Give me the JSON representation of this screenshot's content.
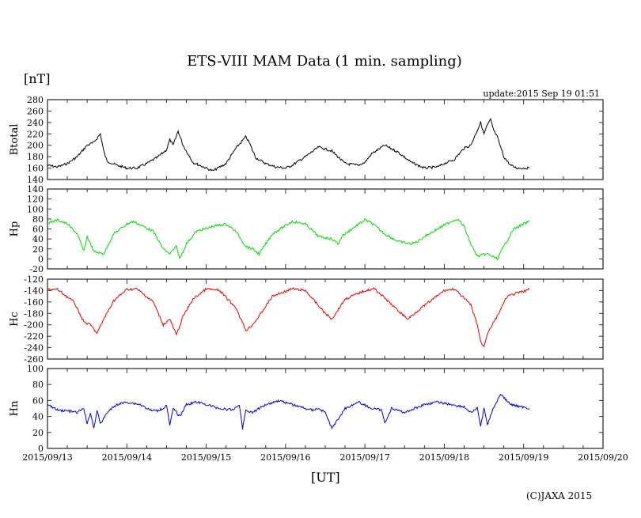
{
  "chart_data": {
    "type": "line",
    "title": "ETS-VIII MAM Data (1 min. sampling)",
    "unit_label": "[nT]",
    "update": "update:2015 Sep 19 01:51",
    "xlabel": "[UT]",
    "copyright": "(C)JAXA 2015",
    "x_ticks": [
      "2015/09/13",
      "2015/09/14",
      "2015/09/15",
      "2015/09/16",
      "2015/09/17",
      "2015/09/18",
      "2015/09/19",
      "2015/09/20"
    ],
    "xlim_hours_from_start": [
      0,
      168
    ],
    "panels": [
      {
        "name": "Btotal",
        "color": "#000000",
        "ylim": [
          140,
          280
        ],
        "yticks": [
          "280",
          "260",
          "240",
          "220",
          "200",
          "180",
          "160",
          "140"
        ],
        "x": [
          0,
          3,
          6,
          9,
          12,
          14,
          16,
          17,
          18,
          21,
          24,
          27,
          30,
          33,
          36,
          37,
          38,
          39.5,
          41,
          44,
          48,
          50,
          54,
          57,
          60,
          61,
          63,
          66,
          69,
          72,
          74,
          78,
          82,
          86,
          90,
          94,
          96,
          98,
          102,
          106,
          110,
          114,
          118,
          120,
          123,
          126,
          128,
          131,
          132,
          133,
          134,
          135,
          136,
          138,
          140,
          142,
          145.7
        ],
        "y": [
          165,
          162,
          168,
          180,
          200,
          205,
          220,
          190,
          172,
          165,
          160,
          160,
          168,
          178,
          192,
          210,
          200,
          225,
          200,
          170,
          160,
          155,
          168,
          195,
          215,
          205,
          178,
          168,
          162,
          160,
          165,
          180,
          197,
          190,
          168,
          165,
          170,
          185,
          200,
          188,
          170,
          160,
          162,
          168,
          175,
          195,
          200,
          240,
          220,
          235,
          245,
          225,
          215,
          180,
          165,
          160,
          160
        ]
      },
      {
        "name": "Hp",
        "color": "#00dd00",
        "ylim": [
          -20,
          140
        ],
        "yticks": [
          "140",
          "120",
          "100",
          "80",
          "60",
          "40",
          "20",
          "0",
          "-20"
        ],
        "x": [
          0,
          3,
          6,
          9,
          11,
          12,
          14,
          17,
          20,
          24,
          26,
          32,
          35,
          37,
          39,
          40,
          42,
          45,
          50,
          54,
          57,
          60,
          62,
          64,
          68,
          74,
          78,
          82,
          86,
          88,
          89,
          92,
          96,
          98,
          102,
          106,
          110,
          112,
          114,
          118,
          122,
          124,
          126,
          128,
          130,
          133,
          136,
          138,
          141,
          145.7
        ],
        "y": [
          72,
          78,
          70,
          50,
          15,
          45,
          15,
          10,
          50,
          70,
          75,
          55,
          20,
          10,
          25,
          0,
          30,
          55,
          65,
          70,
          55,
          25,
          20,
          10,
          50,
          75,
          70,
          45,
          40,
          30,
          45,
          60,
          78,
          72,
          50,
          35,
          30,
          35,
          45,
          60,
          75,
          80,
          65,
          30,
          5,
          10,
          0,
          25,
          60,
          75
        ]
      },
      {
        "name": "Hc",
        "color": "#ee0000",
        "ylim": [
          -260,
          -120
        ],
        "yticks": [
          "-120",
          "-140",
          "-160",
          "-180",
          "-200",
          "-220",
          "-240",
          "-260"
        ],
        "x": [
          0,
          3,
          8,
          11,
          13,
          15,
          17,
          20,
          24,
          27,
          32,
          35,
          37,
          39,
          41,
          44,
          48,
          52,
          57,
          60,
          62,
          64,
          68,
          74,
          78,
          84,
          86,
          90,
          96,
          99,
          106,
          109,
          112,
          120,
          123,
          128,
          130,
          131,
          132,
          133,
          134,
          136,
          139,
          145.7
        ],
        "y": [
          -138,
          -138,
          -160,
          -195,
          -200,
          -215,
          -190,
          -158,
          -138,
          -137,
          -160,
          -200,
          -190,
          -218,
          -185,
          -155,
          -137,
          -140,
          -170,
          -210,
          -200,
          -185,
          -150,
          -137,
          -140,
          -180,
          -190,
          -155,
          -140,
          -137,
          -175,
          -190,
          -175,
          -140,
          -137,
          -165,
          -200,
          -230,
          -238,
          -215,
          -205,
          -185,
          -150,
          -138
        ]
      },
      {
        "name": "Hn",
        "color": "#0000dd",
        "ylim": [
          0,
          100
        ],
        "yticks": [
          "100",
          "80",
          "60",
          "40",
          "20",
          "0"
        ],
        "x": [
          0,
          3,
          6,
          9,
          11,
          12,
          13,
          14,
          15,
          16,
          18,
          21,
          24,
          28,
          31,
          33,
          35,
          36,
          37,
          38,
          40,
          42,
          45,
          48,
          52,
          56,
          58,
          59,
          60,
          62,
          66,
          70,
          74,
          78,
          80,
          82,
          84,
          86,
          90,
          94,
          98,
          101,
          102,
          104,
          108,
          114,
          118,
          122,
          126,
          128,
          130,
          131,
          132,
          133,
          135,
          137,
          140,
          145.7
        ],
        "y": [
          55,
          48,
          47,
          45,
          50,
          30,
          45,
          25,
          48,
          30,
          45,
          55,
          58,
          55,
          48,
          47,
          50,
          55,
          28,
          50,
          40,
          55,
          58,
          55,
          50,
          48,
          55,
          25,
          48,
          45,
          55,
          60,
          55,
          50,
          48,
          50,
          45,
          25,
          50,
          58,
          50,
          48,
          32,
          50,
          45,
          55,
          58,
          55,
          52,
          45,
          50,
          28,
          50,
          30,
          52,
          68,
          55,
          50
        ]
      }
    ]
  }
}
